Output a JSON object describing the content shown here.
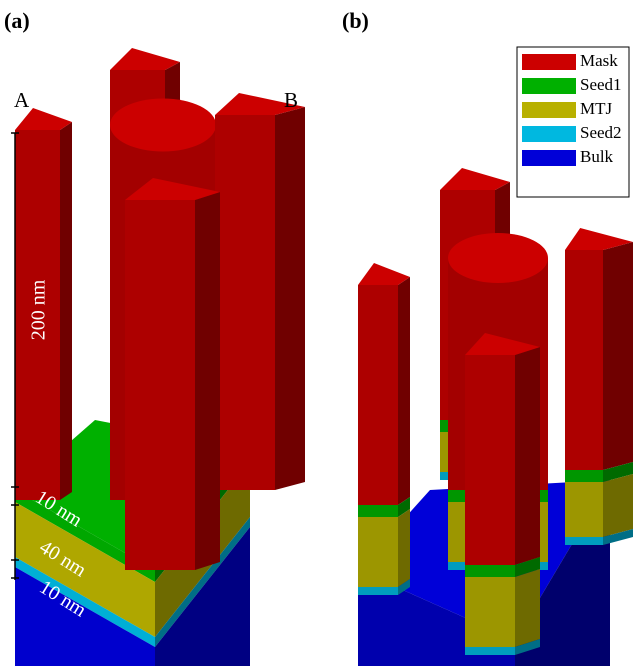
{
  "panels": [
    {
      "label": "(a)"
    },
    {
      "label": "(b)"
    }
  ],
  "pillar_labels": [
    "A",
    "B"
  ],
  "dimensions": [
    "200 nm",
    "10 nm",
    "40 nm",
    "10 nm"
  ],
  "legend": [
    {
      "name": "Mask",
      "color": "#cc0000"
    },
    {
      "name": "Seed1",
      "color": "#00b000"
    },
    {
      "name": "MTJ",
      "color": "#b8b000"
    },
    {
      "name": "Seed2",
      "color": "#00b8e0"
    },
    {
      "name": "Bulk",
      "color": "#0000d8"
    }
  ]
}
